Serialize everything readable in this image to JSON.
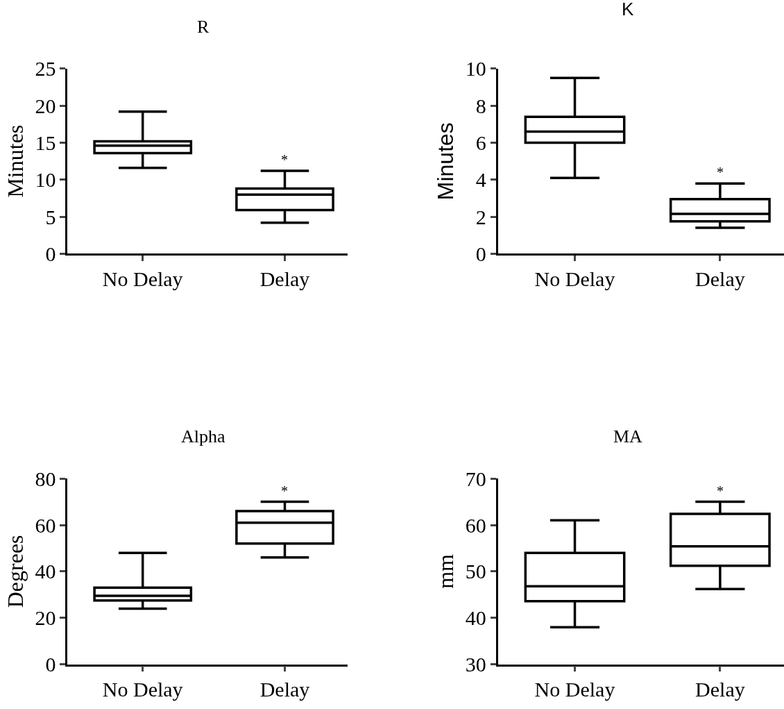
{
  "chart_data": [
    {
      "type": "box",
      "title": "R",
      "ylabel": "Minutes",
      "categories": [
        "No Delay",
        "Delay"
      ],
      "color": "#000000",
      "ylim": [
        0,
        25
      ],
      "yticks": [
        0,
        5,
        10,
        15,
        20,
        25
      ],
      "boxes": [
        {
          "low": 11.6,
          "q1": 13.6,
          "median": 14.6,
          "q3": 15.2,
          "high": 19.2
        },
        {
          "low": 4.2,
          "q1": 5.9,
          "median": 8.0,
          "q3": 8.8,
          "high": 11.2
        }
      ],
      "annotations": [
        "*"
      ]
    },
    {
      "type": "box",
      "title": "K",
      "ylabel": "Minutes",
      "categories": [
        "No Delay",
        "Delay"
      ],
      "color": "#000000",
      "ylim": [
        0,
        10
      ],
      "yticks": [
        0,
        2,
        4,
        6,
        8,
        10
      ],
      "boxes": [
        {
          "low": 4.1,
          "q1": 6.0,
          "median": 6.6,
          "q3": 7.4,
          "high": 9.5
        },
        {
          "low": 1.4,
          "q1": 1.75,
          "median": 2.15,
          "q3": 2.95,
          "high": 3.8
        }
      ],
      "annotations": [
        "*"
      ]
    },
    {
      "type": "box",
      "title": "Alpha",
      "ylabel": "Degrees",
      "categories": [
        "No Delay",
        "Delay"
      ],
      "color": "#000000",
      "ylim": [
        0,
        80
      ],
      "yticks": [
        0,
        20,
        40,
        60,
        80
      ],
      "boxes": [
        {
          "low": 24,
          "q1": 27.5,
          "median": 29.5,
          "q3": 33,
          "high": 48
        },
        {
          "low": 46,
          "q1": 52,
          "median": 61,
          "q3": 66,
          "high": 70
        }
      ],
      "annotations": [
        "*"
      ]
    },
    {
      "type": "box",
      "title": "MA",
      "ylabel": "mm",
      "categories": [
        "No Delay",
        "Delay"
      ],
      "color": "#000000",
      "ylim": [
        30,
        70
      ],
      "yticks": [
        30,
        40,
        50,
        60,
        70
      ],
      "boxes": [
        {
          "low": 38,
          "q1": 43.6,
          "median": 46.8,
          "q3": 54,
          "high": 61
        },
        {
          "low": 46.2,
          "q1": 51.2,
          "median": 55.4,
          "q3": 62.4,
          "high": 65
        }
      ],
      "annotations": [
        "*"
      ]
    }
  ]
}
